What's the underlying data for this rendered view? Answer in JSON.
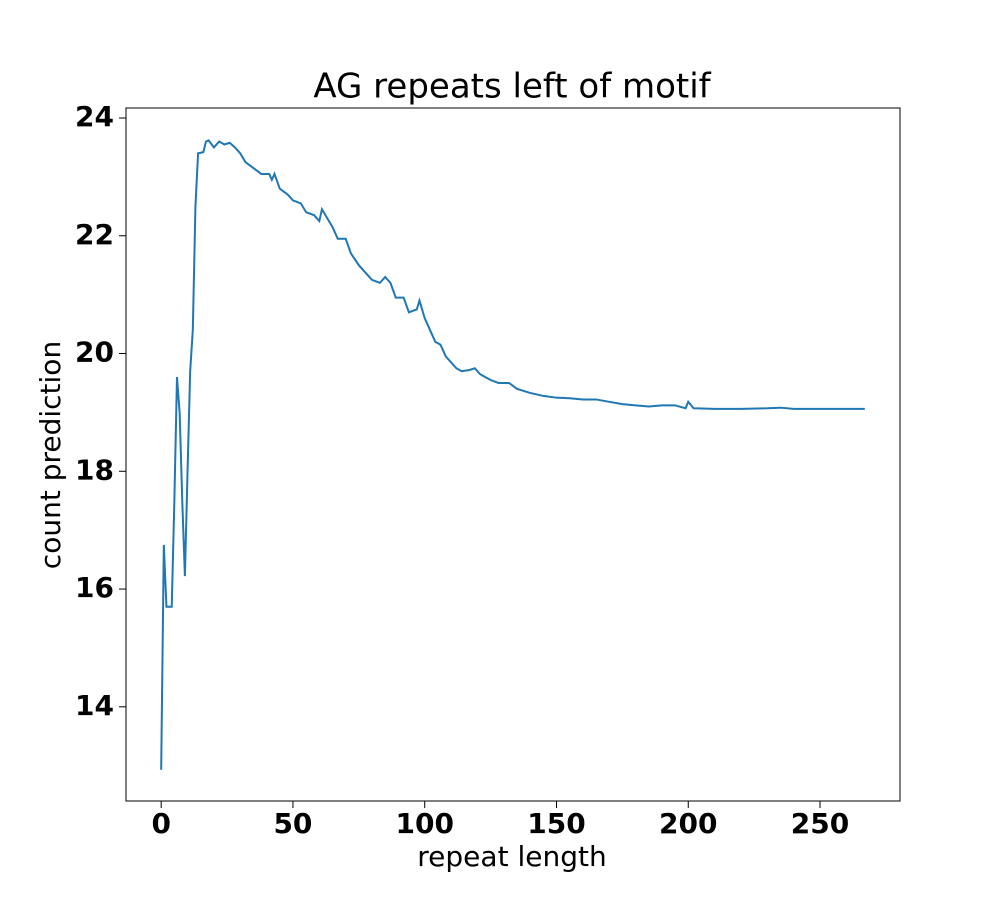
{
  "chart_data": {
    "type": "line",
    "title": "AG repeats left of motif",
    "x_label": "repeat length",
    "y_label": "count prediction",
    "x": [
      0,
      1,
      2,
      3,
      4,
      5,
      6,
      7,
      8,
      9,
      10,
      11,
      12,
      13,
      14,
      16,
      17,
      18,
      20,
      22,
      24,
      26,
      28,
      30,
      32,
      35,
      38,
      41,
      42,
      43,
      45,
      48,
      50,
      53,
      55,
      58,
      60,
      61,
      63,
      65,
      67,
      70,
      72,
      75,
      78,
      80,
      83,
      85,
      87,
      89,
      92,
      94,
      97,
      98,
      100,
      102,
      104,
      106,
      108,
      110,
      112,
      114,
      117,
      119,
      121,
      123,
      125,
      128,
      132,
      135,
      140,
      145,
      150,
      155,
      160,
      165,
      170,
      175,
      180,
      185,
      190,
      195,
      199,
      200,
      202,
      210,
      220,
      230,
      235,
      240,
      250,
      260,
      267
    ],
    "series": [
      {
        "name": "count prediction",
        "color": "#1f77b4",
        "values": [
          12.93,
          16.75,
          15.7,
          15.7,
          15.7,
          17.5,
          19.6,
          19.0,
          17.5,
          16.22,
          18.0,
          19.7,
          20.4,
          22.5,
          23.4,
          23.42,
          23.6,
          23.62,
          23.5,
          23.6,
          23.55,
          23.58,
          23.5,
          23.4,
          23.25,
          23.15,
          23.05,
          23.05,
          22.95,
          23.05,
          22.8,
          22.7,
          22.6,
          22.55,
          22.4,
          22.35,
          22.25,
          22.45,
          22.3,
          22.15,
          21.95,
          21.95,
          21.7,
          21.5,
          21.35,
          21.25,
          21.2,
          21.3,
          21.2,
          20.95,
          20.95,
          20.7,
          20.75,
          20.9,
          20.6,
          20.4,
          20.2,
          20.15,
          19.95,
          19.85,
          19.75,
          19.7,
          19.72,
          19.75,
          19.65,
          19.6,
          19.55,
          19.5,
          19.5,
          19.4,
          19.33,
          19.28,
          19.25,
          19.24,
          19.22,
          19.22,
          19.18,
          19.14,
          19.12,
          19.1,
          19.12,
          19.12,
          19.07,
          19.18,
          19.07,
          19.06,
          19.06,
          19.07,
          19.08,
          19.06,
          19.06,
          19.06,
          19.06
        ]
      }
    ],
    "xlim": [
      -13.35,
      280.35
    ],
    "xticks": [
      0,
      50,
      100,
      150,
      200,
      250
    ],
    "ylim": [
      12.4,
      24.17
    ],
    "yticks": [
      14,
      16,
      18,
      20,
      22,
      24
    ]
  }
}
